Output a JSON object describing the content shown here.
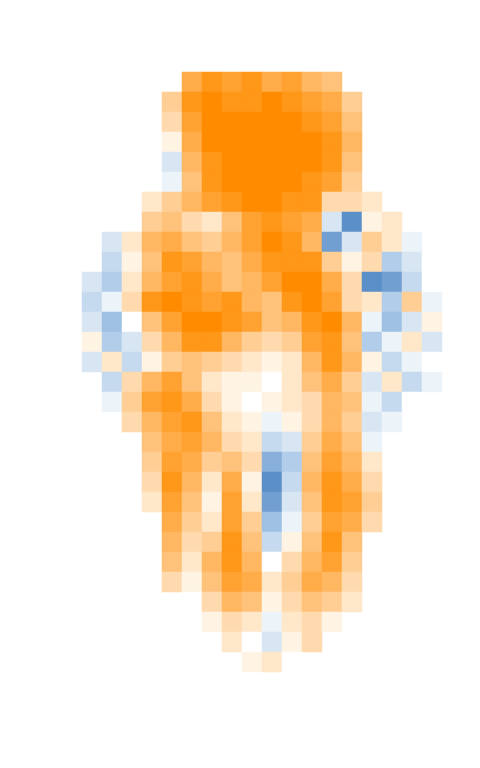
{
  "chart_data": {
    "type": "heatmap",
    "tick_labels": false,
    "color_range": [
      -1,
      1
    ],
    "cells": [
      [
        null,
        null,
        null,
        null,
        null,
        0.7,
        0.9,
        0.8,
        0.9,
        0.7,
        0.8,
        0.6,
        0.5,
        null,
        null,
        null,
        null,
        null
      ],
      [
        null,
        null,
        null,
        null,
        0.4,
        0.9,
        1,
        0.9,
        0.9,
        1,
        0.9,
        0.8,
        0.7,
        0.4,
        null,
        null,
        null,
        null
      ],
      [
        null,
        null,
        null,
        null,
        0.3,
        0.8,
        1,
        1,
        1,
        1,
        1,
        0.9,
        0.8,
        0.5,
        null,
        null,
        null,
        null
      ],
      [
        null,
        null,
        null,
        null,
        0.1,
        0.7,
        1,
        1,
        1,
        1,
        1,
        1,
        0.9,
        0.6,
        null,
        null,
        null,
        null
      ],
      [
        null,
        null,
        null,
        null,
        -0.2,
        0.6,
        0.9,
        1,
        1,
        1,
        1,
        1,
        0.9,
        0.5,
        null,
        null,
        null,
        null
      ],
      [
        null,
        null,
        null,
        null,
        -0.1,
        0.5,
        0.9,
        1,
        1,
        1,
        1,
        0.9,
        0.8,
        0.4,
        null,
        null,
        null,
        null
      ],
      [
        null,
        null,
        null,
        0.2,
        0.4,
        0.6,
        0.8,
        0.9,
        1,
        1,
        0.9,
        0.9,
        0.3,
        0.3,
        0.2,
        null,
        null,
        null
      ],
      [
        null,
        null,
        null,
        0.4,
        0.5,
        0.3,
        0.2,
        0.5,
        0.8,
        0.9,
        0.8,
        0.7,
        -0.2,
        -0.8,
        0.1,
        0.2,
        null,
        null
      ],
      [
        null,
        -0.2,
        0.2,
        0.6,
        0.7,
        0.5,
        0.4,
        0.6,
        0.8,
        1,
        0.9,
        0.6,
        -0.7,
        -0.2,
        0.4,
        0.2,
        -0.1,
        null
      ],
      [
        null,
        -0.3,
        0.1,
        0.5,
        0.9,
        0.8,
        0.6,
        0.5,
        0.7,
        0.9,
        0.9,
        0.9,
        0.4,
        0.1,
        0.3,
        -0.4,
        -0.2,
        0
      ],
      [
        -0.2,
        -0.4,
        0.2,
        0.6,
        0.8,
        0.9,
        0.7,
        0.5,
        0.6,
        0.8,
        1,
        1,
        0.7,
        0.3,
        -0.8,
        -0.7,
        -0.3,
        0
      ],
      [
        -0.3,
        -0.1,
        0.3,
        0.9,
        1,
        0.9,
        0.8,
        0.9,
        0.6,
        0.5,
        0.9,
        1,
        0.8,
        0.3,
        0.2,
        -0.4,
        0.4,
        -0.1
      ],
      [
        -0.2,
        -0.5,
        0,
        0.5,
        0.8,
        1,
        1,
        0.9,
        0.8,
        0.5,
        0.6,
        0.9,
        1,
        0.6,
        -0.1,
        -0.5,
        -0.2,
        0.1
      ],
      [
        0.1,
        -0.4,
        -0.2,
        0.3,
        0.6,
        0.9,
        0.9,
        0.6,
        0.4,
        0.3,
        0.4,
        0.8,
        0.9,
        0.5,
        -0.4,
        -0.1,
        0.2,
        -0.2
      ],
      [
        -0.2,
        0.2,
        -0.3,
        0.1,
        0.4,
        0.5,
        0.4,
        0.3,
        0.2,
        0.1,
        0.2,
        0.6,
        0.9,
        0.6,
        0.1,
        -0.3,
        -0.1,
        0
      ],
      [
        null,
        -0.3,
        0.3,
        0.6,
        0.8,
        0.5,
        0.2,
        0.1,
        0.1,
        0,
        0.2,
        0.5,
        0.7,
        0.4,
        -0.2,
        0.2,
        -0.3,
        -0.1
      ],
      [
        null,
        -0.1,
        0.4,
        0.8,
        0.9,
        0.7,
        0.3,
        0.1,
        0,
        0.1,
        0.2,
        0.3,
        0.6,
        0.5,
        -0.1,
        -0.3,
        0,
        null
      ],
      [
        null,
        null,
        0.3,
        0.6,
        0.8,
        0.9,
        0.5,
        0.2,
        0.1,
        -0.1,
        0.1,
        0.3,
        0.6,
        0.4,
        -0.2,
        -0.1,
        null,
        null
      ],
      [
        null,
        null,
        null,
        0.5,
        0.7,
        0.8,
        0.6,
        0.3,
        0.2,
        -0.3,
        -0.2,
        0.4,
        0.7,
        0.5,
        -0.1,
        null,
        null,
        null
      ],
      [
        null,
        null,
        null,
        0.4,
        0.8,
        0.7,
        0.4,
        0.5,
        0.3,
        -0.6,
        -0.4,
        0.5,
        0.8,
        0.6,
        0.2,
        null,
        null,
        null
      ],
      [
        null,
        null,
        null,
        0.3,
        0.9,
        0.6,
        0.2,
        0.7,
        0.1,
        -0.8,
        -0.3,
        0.6,
        0.9,
        0.7,
        0.3,
        null,
        null,
        null
      ],
      [
        null,
        null,
        null,
        0.2,
        0.8,
        0.5,
        0.1,
        0.8,
        0.2,
        -0.7,
        -0.2,
        0.5,
        0.9,
        0.8,
        0.4,
        null,
        null,
        null
      ],
      [
        null,
        null,
        null,
        null,
        0.7,
        0.4,
        0.2,
        0.8,
        0.4,
        -0.5,
        -0.1,
        0.4,
        0.8,
        0.7,
        0.3,
        null,
        null,
        null
      ],
      [
        null,
        null,
        null,
        null,
        0.6,
        0.3,
        0.4,
        0.9,
        0.5,
        -0.3,
        0.1,
        0.5,
        0.9,
        0.5,
        null,
        null,
        null,
        null
      ],
      [
        null,
        null,
        null,
        null,
        0.5,
        0.2,
        0.6,
        0.9,
        0.6,
        0,
        0.3,
        0.6,
        0.8,
        0.4,
        null,
        null,
        null,
        null
      ],
      [
        null,
        null,
        null,
        null,
        0.3,
        0.1,
        0.5,
        0.8,
        0.7,
        0.2,
        0.4,
        0.7,
        0.6,
        0.3,
        null,
        null,
        null,
        null
      ],
      [
        null,
        null,
        null,
        null,
        null,
        0,
        0.3,
        0.6,
        0.5,
        0.1,
        0.3,
        0.5,
        0.4,
        0.2,
        null,
        null,
        null,
        null
      ],
      [
        null,
        null,
        null,
        null,
        null,
        null,
        0.1,
        0.3,
        0.2,
        -0.1,
        0.2,
        0.3,
        0.1,
        null,
        null,
        null,
        null,
        null
      ],
      [
        null,
        null,
        null,
        null,
        null,
        null,
        null,
        0.2,
        0,
        -0.2,
        0.1,
        0.3,
        null,
        null,
        null,
        null,
        null,
        null
      ],
      [
        null,
        null,
        null,
        null,
        null,
        null,
        null,
        null,
        0.1,
        0.2,
        0,
        null,
        null,
        null,
        null,
        null,
        null,
        null
      ]
    ]
  }
}
